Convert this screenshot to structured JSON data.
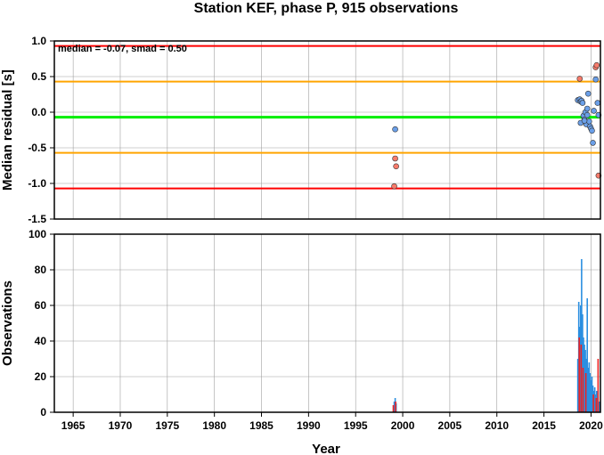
{
  "chart_data": [
    {
      "type": "scatter",
      "title": "Station KEF, phase P, 915 observations",
      "ylabel": "Median residual [s]",
      "annotation": "median = -0.07, smad = 0.50",
      "xlim": [
        1963,
        2021
      ],
      "ylim": [
        -1.5,
        1.0
      ],
      "yticks": [
        "1.0",
        "0.5",
        "0.0",
        "-0.5",
        "-1.0",
        "-1.5"
      ],
      "grid": true,
      "reference_lines": [
        {
          "y": 0.93,
          "color": "#ff0000"
        },
        {
          "y": 0.43,
          "color": "#ffa500"
        },
        {
          "y": -0.07,
          "color": "#00ee00"
        },
        {
          "y": -0.57,
          "color": "#ffa500"
        },
        {
          "y": -1.07,
          "color": "#ff0000"
        }
      ],
      "series": [
        {
          "color": "#6a9fe8",
          "points": [
            [
              1999.2,
              -0.24
            ],
            [
              2018.6,
              0.17
            ],
            [
              2018.8,
              0.18
            ],
            [
              2018.9,
              0.15
            ],
            [
              2019.0,
              0.16
            ],
            [
              2019.1,
              0.13
            ],
            [
              2019.2,
              -0.05
            ],
            [
              2019.3,
              -0.1
            ],
            [
              2019.4,
              0.0
            ],
            [
              2019.5,
              -0.17
            ],
            [
              2019.6,
              -0.04
            ],
            [
              2019.7,
              0.26
            ],
            [
              2019.8,
              -0.13
            ],
            [
              2019.9,
              -0.2
            ],
            [
              2020.0,
              -0.23
            ],
            [
              2020.1,
              -0.26
            ],
            [
              2020.2,
              -0.43
            ],
            [
              2020.3,
              0.02
            ],
            [
              2020.5,
              0.46
            ],
            [
              2020.7,
              0.13
            ],
            [
              2020.8,
              -0.04
            ],
            [
              2018.9,
              -0.15
            ],
            [
              2019.3,
              -0.12
            ],
            [
              2019.6,
              0.05
            ]
          ]
        },
        {
          "color": "#f77b6b",
          "points": [
            [
              1999.2,
              -0.65
            ],
            [
              1999.3,
              -0.76
            ],
            [
              1999.1,
              -1.04
            ],
            [
              2018.8,
              0.47
            ],
            [
              2020.5,
              0.63
            ],
            [
              2020.6,
              0.66
            ],
            [
              2020.8,
              -0.89
            ]
          ]
        }
      ]
    },
    {
      "type": "bar",
      "ylabel": "Observations",
      "xlabel": "Year",
      "xlim": [
        1963,
        2021
      ],
      "ylim": [
        0,
        100
      ],
      "xticks": [
        "1965",
        "1970",
        "1975",
        "1980",
        "1985",
        "1990",
        "1995",
        "2000",
        "2005",
        "2010",
        "2015",
        "2020"
      ],
      "yticks": [
        "0",
        "20",
        "40",
        "60",
        "80",
        "100"
      ],
      "grid": true,
      "series": [
        {
          "color": "#2b8fe0",
          "bars": [
            [
              1999.1,
              6
            ],
            [
              1999.2,
              8
            ],
            [
              1999.3,
              5
            ],
            [
              2018.6,
              30
            ],
            [
              2018.7,
              62
            ],
            [
              2018.8,
              48
            ],
            [
              2018.9,
              60
            ],
            [
              2019.0,
              86
            ],
            [
              2019.1,
              55
            ],
            [
              2019.2,
              42
            ],
            [
              2019.3,
              38
            ],
            [
              2019.4,
              35
            ],
            [
              2019.5,
              30
            ],
            [
              2019.6,
              64
            ],
            [
              2019.7,
              25
            ],
            [
              2019.8,
              28
            ],
            [
              2019.9,
              22
            ],
            [
              2020.0,
              18
            ],
            [
              2020.1,
              20
            ],
            [
              2020.2,
              15
            ],
            [
              2020.3,
              12
            ],
            [
              2020.4,
              14
            ],
            [
              2020.5,
              10
            ],
            [
              2020.6,
              12
            ],
            [
              2020.7,
              8
            ],
            [
              2020.9,
              6
            ]
          ]
        },
        {
          "color": "#ee2222",
          "bars": [
            [
              1999.0,
              4
            ],
            [
              1999.25,
              6
            ],
            [
              2018.75,
              42
            ],
            [
              2018.95,
              38
            ],
            [
              2019.15,
              25
            ],
            [
              2019.45,
              22
            ],
            [
              2020.25,
              10
            ],
            [
              2020.55,
              8
            ],
            [
              2020.75,
              30
            ]
          ]
        }
      ]
    }
  ]
}
